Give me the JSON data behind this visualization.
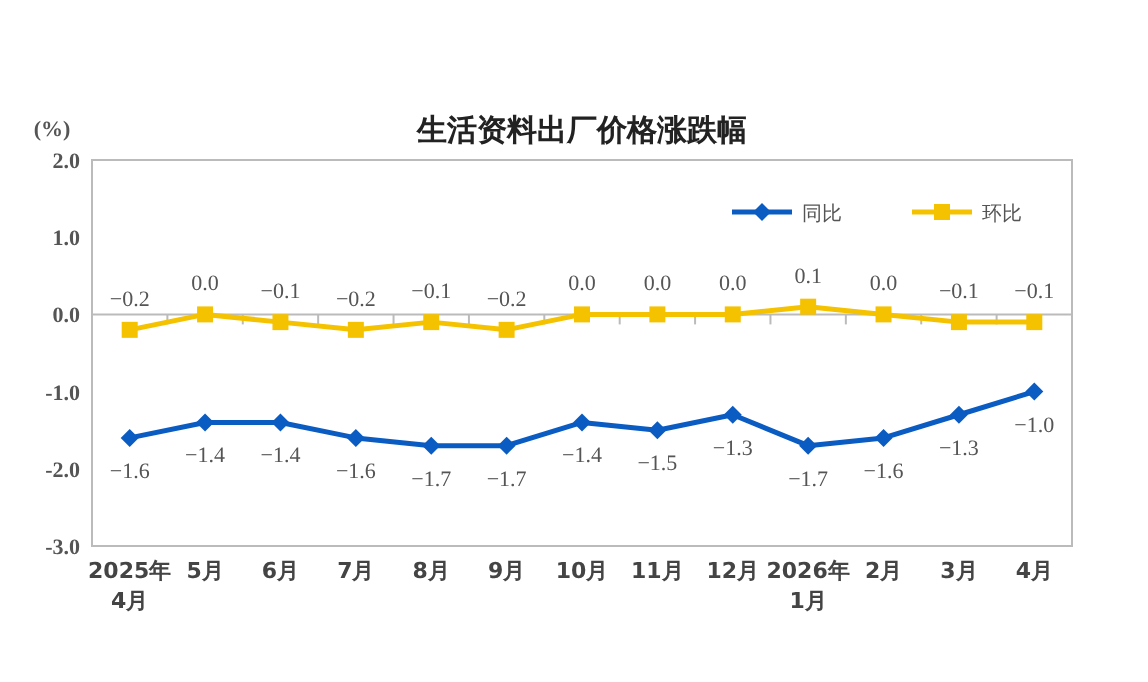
{
  "chart_data": {
    "type": "line",
    "title": "生活资料出厂价格涨跌幅",
    "ylabel": "(%)",
    "categories": [
      "2025年\n4月",
      "5月",
      "6月",
      "7月",
      "8月",
      "9月",
      "10月",
      "11月",
      "12月",
      "2026年\n1月",
      "2月",
      "3月",
      "4月"
    ],
    "series": [
      {
        "name": "同比",
        "color": "#0a5cc2",
        "marker": "diamond",
        "values": [
          -1.6,
          -1.4,
          -1.4,
          -1.6,
          -1.7,
          -1.7,
          -1.4,
          -1.5,
          -1.3,
          -1.7,
          -1.6,
          -1.3,
          -1.0
        ],
        "value_labels": [
          "−1.6",
          "−1.4",
          "−1.4",
          "−1.6",
          "−1.7",
          "−1.7",
          "−1.4",
          "−1.5",
          "−1.3",
          "−1.7",
          "−1.6",
          "−1.3",
          "−1.0"
        ]
      },
      {
        "name": "环比",
        "color": "#f5c200",
        "marker": "square",
        "values": [
          -0.2,
          0.0,
          -0.1,
          -0.2,
          -0.1,
          -0.2,
          0.0,
          0.0,
          0.0,
          0.1,
          0.0,
          -0.1,
          -0.1
        ],
        "value_labels": [
          "−0.2",
          "0.0",
          "−0.1",
          "−0.2",
          "−0.1",
          "−0.2",
          "0.0",
          "0.0",
          "0.0",
          "0.1",
          "0.0",
          "−0.1",
          "−0.1"
        ]
      }
    ],
    "ylim": [
      -3,
      2
    ],
    "yticks": [
      {
        "value": 2,
        "label": "2.0"
      },
      {
        "value": 1,
        "label": "1.0"
      },
      {
        "value": 0,
        "label": "0.0"
      },
      {
        "value": -1,
        "label": "-1.0"
      },
      {
        "value": -2,
        "label": "-2.0"
      },
      {
        "value": -3,
        "label": "-3.0"
      }
    ],
    "legend": "top right"
  }
}
